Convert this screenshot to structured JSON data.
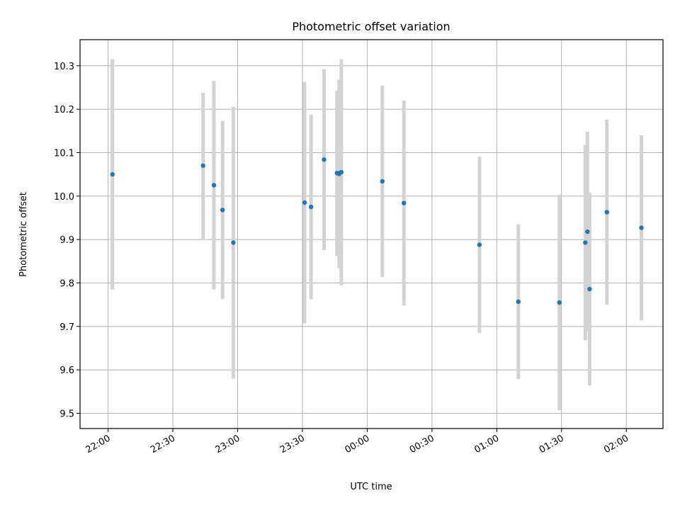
{
  "chart_data": {
    "type": "scatter",
    "title": "Photometric offset variation",
    "xlabel": "UTC time",
    "ylabel": "Photometric offset",
    "x_unit": "UTC time of day (HH:MM), crossing midnight",
    "xlim": [
      "21:47",
      "02:17"
    ],
    "ylim": [
      9.465,
      10.36
    ],
    "x_ticks": [
      "22:00",
      "22:30",
      "23:00",
      "23:30",
      "00:00",
      "00:30",
      "01:00",
      "01:30",
      "02:00"
    ],
    "y_ticks": [
      9.5,
      9.6,
      9.7,
      9.8,
      9.9,
      10.0,
      10.1,
      10.2,
      10.3
    ],
    "grid": true,
    "colors": {
      "points": "#1f77b4",
      "errorbars": "#d3d3d3",
      "grid": "#b0b0b0"
    },
    "series": [
      {
        "points": [
          {
            "x": "22:02",
            "y": 10.05,
            "yerr": 0.265
          },
          {
            "x": "22:44",
            "y": 10.07,
            "yerr": 0.168
          },
          {
            "x": "22:49",
            "y": 10.025,
            "yerr": 0.24
          },
          {
            "x": "22:53",
            "y": 9.968,
            "yerr": 0.205
          },
          {
            "x": "22:58",
            "y": 9.893,
            "yerr": 0.313
          },
          {
            "x": "23:31",
            "y": 9.985,
            "yerr": 0.278
          },
          {
            "x": "23:34",
            "y": 9.975,
            "yerr": 0.212
          },
          {
            "x": "23:40",
            "y": 10.084,
            "yerr": 0.208
          },
          {
            "x": "23:46",
            "y": 10.053,
            "yerr": 0.19
          },
          {
            "x": "23:47",
            "y": 10.051,
            "yerr": 0.217
          },
          {
            "x": "23:47",
            "y": 10.053,
            "yerr": 0.205
          },
          {
            "x": "23:48",
            "y": 10.055,
            "yerr": 0.26
          },
          {
            "x": "00:07",
            "y": 10.034,
            "yerr": 0.22
          },
          {
            "x": "00:17",
            "y": 9.984,
            "yerr": 0.236
          },
          {
            "x": "00:52",
            "y": 9.888,
            "yerr": 0.203
          },
          {
            "x": "01:10",
            "y": 9.757,
            "yerr": 0.178
          },
          {
            "x": "01:29",
            "y": 9.755,
            "yerr": 0.248
          },
          {
            "x": "01:41",
            "y": 9.893,
            "yerr": 0.225
          },
          {
            "x": "01:42",
            "y": 9.918,
            "yerr": 0.23
          },
          {
            "x": "01:43",
            "y": 9.786,
            "yerr": 0.222
          },
          {
            "x": "01:51",
            "y": 9.963,
            "yerr": 0.213
          },
          {
            "x": "02:07",
            "y": 9.927,
            "yerr": 0.213
          }
        ]
      }
    ]
  }
}
